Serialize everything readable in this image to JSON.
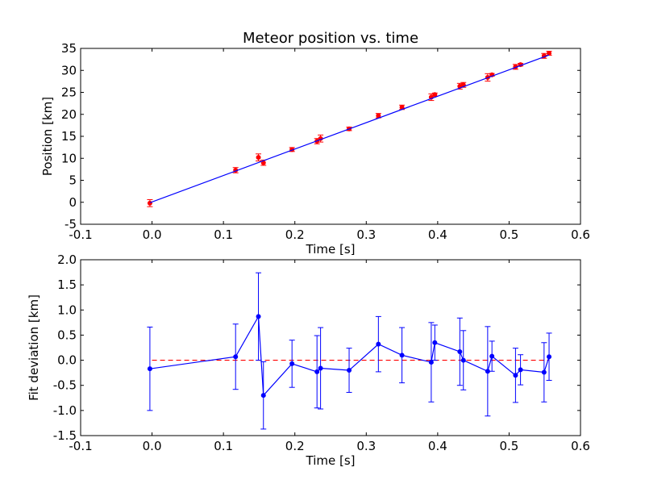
{
  "chart_data": [
    {
      "type": "scatter",
      "title": "Meteor position vs. time",
      "xlabel": "Time [s]",
      "ylabel": "Position [km]",
      "xlim": [
        -0.1,
        0.6
      ],
      "ylim": [
        -5,
        35
      ],
      "xticks": [
        "-0.1",
        "0.0",
        "0.1",
        "0.2",
        "0.3",
        "0.4",
        "0.5",
        "0.6"
      ],
      "yticks": [
        "-5",
        "0",
        "5",
        "10",
        "15",
        "20",
        "25",
        "30",
        "35"
      ],
      "grid": false,
      "series": [
        {
          "kind": "errorbar-points",
          "color": "#ff0000",
          "x": [
            -0.003,
            0.117,
            0.149,
            0.156,
            0.196,
            0.231,
            0.236,
            0.276,
            0.317,
            0.35,
            0.391,
            0.396,
            0.431,
            0.436,
            0.47,
            0.476,
            0.509,
            0.516,
            0.549,
            0.556
          ],
          "y": [
            -0.2,
            7.3,
            10.2,
            9.0,
            12.0,
            13.9,
            14.5,
            16.7,
            19.7,
            21.6,
            23.9,
            24.5,
            26.4,
            26.7,
            28.4,
            29.0,
            30.8,
            31.3,
            33.3,
            33.9
          ],
          "yerr": [
            0.8,
            0.6,
            0.8,
            0.6,
            0.45,
            0.6,
            0.8,
            0.4,
            0.5,
            0.5,
            0.75,
            0.35,
            0.65,
            0.55,
            0.85,
            0.3,
            0.55,
            0.3,
            0.55,
            0.45
          ]
        },
        {
          "kind": "fit-line",
          "color": "#0000ff",
          "x": [
            -0.003,
            0.556
          ],
          "y": [
            -0.1,
            33.5
          ]
        }
      ]
    },
    {
      "type": "line",
      "title": "",
      "xlabel": "Time [s]",
      "ylabel": "Fit deviation [km]",
      "xlim": [
        -0.1,
        0.6
      ],
      "ylim": [
        -1.5,
        2.0
      ],
      "xticks": [
        "-0.1",
        "0.0",
        "0.1",
        "0.2",
        "0.3",
        "0.4",
        "0.5",
        "0.6"
      ],
      "yticks": [
        "-1.5",
        "-1.0",
        "-0.5",
        "0.0",
        "0.5",
        "1.0",
        "1.5",
        "2.0"
      ],
      "grid": false,
      "reference_line": {
        "y": 0,
        "color": "#ff0000",
        "style": "dashed"
      },
      "series": [
        {
          "kind": "errorbar-line",
          "color": "#0000ff",
          "x": [
            -0.003,
            0.117,
            0.149,
            0.156,
            0.196,
            0.231,
            0.236,
            0.276,
            0.317,
            0.35,
            0.391,
            0.396,
            0.431,
            0.436,
            0.47,
            0.476,
            0.509,
            0.516,
            0.549,
            0.556
          ],
          "y": [
            -0.17,
            0.07,
            0.87,
            -0.7,
            -0.07,
            -0.23,
            -0.16,
            -0.2,
            0.32,
            0.1,
            -0.04,
            0.35,
            0.17,
            0.0,
            -0.22,
            0.08,
            -0.3,
            -0.19,
            -0.24,
            0.07
          ],
          "yerr": [
            0.83,
            0.65,
            0.87,
            0.67,
            0.47,
            0.72,
            0.81,
            0.44,
            0.55,
            0.55,
            0.79,
            0.35,
            0.67,
            0.59,
            0.89,
            0.3,
            0.54,
            0.3,
            0.59,
            0.47
          ]
        }
      ]
    }
  ]
}
